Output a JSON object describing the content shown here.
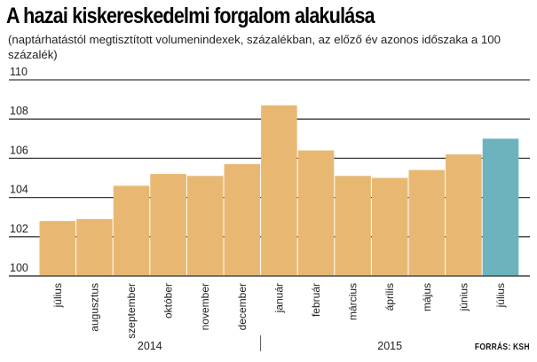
{
  "title": "A hazai kiskereskedelmi forgalom alakulása",
  "subtitle": "(naptárhatástól megtisztított volumenindexek, százalékban, az előző év azonos időszaka a 100 százalék)",
  "source": "FORRÁS: KSH",
  "colors": {
    "bar": "#e8b873",
    "highlight": "#6cb3bd",
    "grid": "#3a3a3a"
  },
  "chart_data": {
    "type": "bar",
    "title": "A hazai kiskereskedelmi forgalom alakulása",
    "subtitle": "(naptárhatástól megtisztított volumenindexek, százalékban, az előző év azonos időszaka a 100 százalék)",
    "categories": [
      "július",
      "augusztus",
      "szeptember",
      "október",
      "november",
      "december",
      "január",
      "február",
      "március",
      "április",
      "május",
      "június",
      "július"
    ],
    "values": [
      102.8,
      102.9,
      104.6,
      105.2,
      105.1,
      105.7,
      108.7,
      106.4,
      105.1,
      105.0,
      105.4,
      106.2,
      107.0
    ],
    "highlight_index": 12,
    "groups": [
      {
        "label": "2014",
        "start": 0,
        "end": 5
      },
      {
        "label": "2015",
        "start": 6,
        "end": 12
      }
    ],
    "ylim": [
      100,
      110
    ],
    "yticks": [
      100,
      102,
      104,
      106,
      108,
      110
    ],
    "grid": true
  }
}
